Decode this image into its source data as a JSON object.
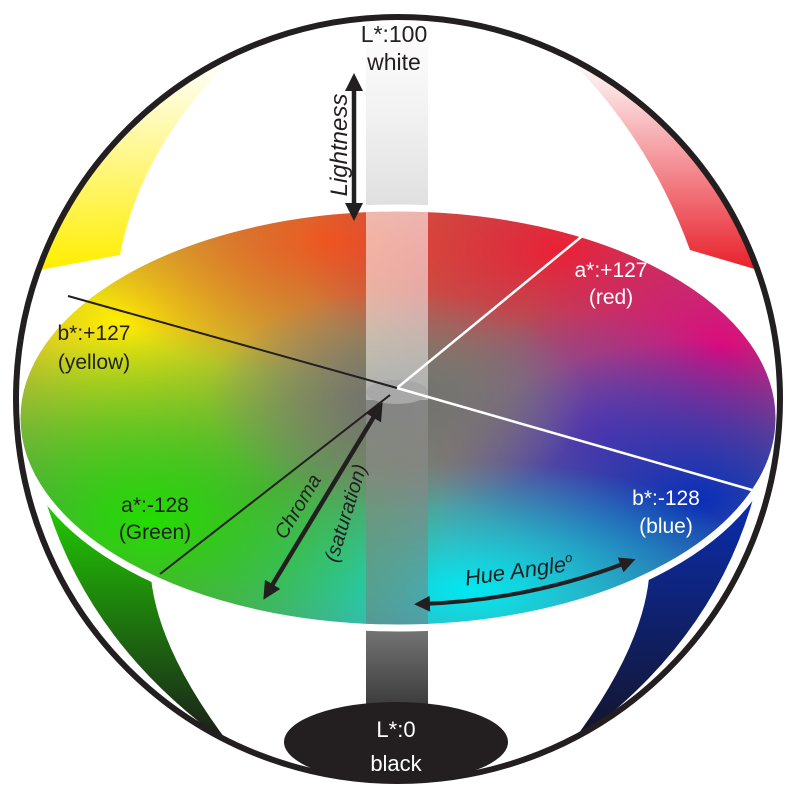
{
  "labels": {
    "top_value": "L*:100",
    "top_name": "white",
    "bottom_value": "L*:0",
    "bottom_name": "black",
    "red_value": "a*:+127",
    "red_name": "(red)",
    "yellow_value": "b*:+127",
    "yellow_name": "(yellow)",
    "green_value": "a*:-128",
    "green_name": "(Green)",
    "blue_value": "b*:-128",
    "blue_name": "(blue)",
    "lightness": "Lightness",
    "chroma": "Chroma",
    "saturation": "(saturation)",
    "hue_angle": "Hue Angle",
    "hue_degree": "o"
  },
  "colors": {
    "red": "#e8202a",
    "magenta": "#e0087c",
    "purple": "#8a3fa0",
    "blue": "#0a2a9e",
    "cyan": "#00e6f0",
    "green": "#22dd00",
    "yellow": "#ffee00",
    "orange": "#f05a1e",
    "black": "#231f20",
    "white": "#ffffff"
  }
}
